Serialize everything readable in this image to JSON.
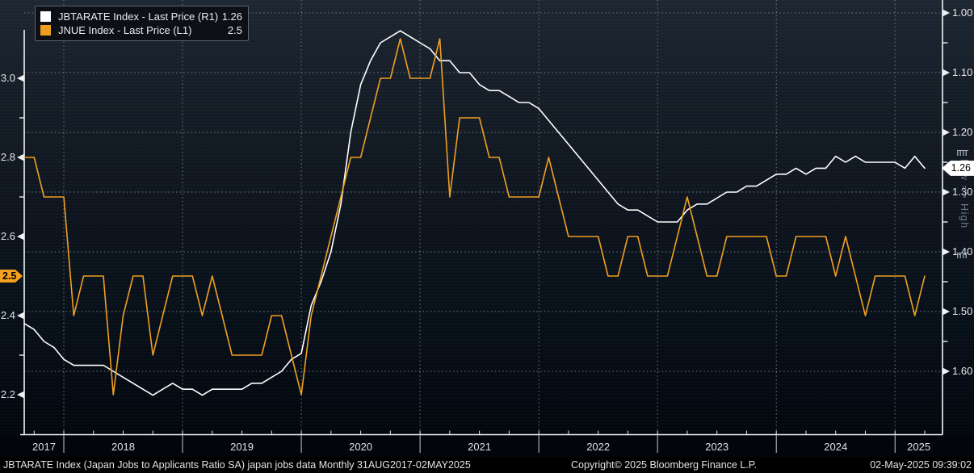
{
  "legend": {
    "items": [
      {
        "label": "JBTARATE Index - Last Price (R1)",
        "value": "1.26",
        "swatch_color": "#ffffff"
      },
      {
        "label": "JNUE Index - Last Price (L1)",
        "value": "2.5",
        "swatch_color": "#f09e1f"
      }
    ]
  },
  "right_rail": {
    "label": "Low => High"
  },
  "footer": {
    "left": "JBTARATE Index (Japan Jobs to Applicants Ratio SA) japan jobs data  Monthly 31AUG2017-02MAY2025",
    "center": "Copyright© 2025 Bloomberg Finance L.P.",
    "right": "02-May-2025 09:39:02"
  },
  "chart_data": {
    "type": "line",
    "title": "JBTARATE Index (Japan Jobs to Applicants Ratio SA) japan jobs data",
    "period": "Monthly 31AUG2017-02MAY2025",
    "grid": true,
    "legend_position": "top-left",
    "x_year_labels": [
      "2017",
      "2018",
      "2019",
      "2020",
      "2021",
      "2022",
      "2023",
      "2024",
      "2025"
    ],
    "x": [
      "2017-08",
      "2017-09",
      "2017-10",
      "2017-11",
      "2017-12",
      "2018-01",
      "2018-02",
      "2018-03",
      "2018-04",
      "2018-05",
      "2018-06",
      "2018-07",
      "2018-08",
      "2018-09",
      "2018-10",
      "2018-11",
      "2018-12",
      "2019-01",
      "2019-02",
      "2019-03",
      "2019-04",
      "2019-05",
      "2019-06",
      "2019-07",
      "2019-08",
      "2019-09",
      "2019-10",
      "2019-11",
      "2019-12",
      "2020-01",
      "2020-02",
      "2020-03",
      "2020-04",
      "2020-05",
      "2020-06",
      "2020-07",
      "2020-08",
      "2020-09",
      "2020-10",
      "2020-11",
      "2020-12",
      "2021-01",
      "2021-02",
      "2021-03",
      "2021-04",
      "2021-05",
      "2021-06",
      "2021-07",
      "2021-08",
      "2021-09",
      "2021-10",
      "2021-11",
      "2021-12",
      "2022-01",
      "2022-02",
      "2022-03",
      "2022-04",
      "2022-05",
      "2022-06",
      "2022-07",
      "2022-08",
      "2022-09",
      "2022-10",
      "2022-11",
      "2022-12",
      "2023-01",
      "2023-02",
      "2023-03",
      "2023-04",
      "2023-05",
      "2023-06",
      "2023-07",
      "2023-08",
      "2023-09",
      "2023-10",
      "2023-11",
      "2023-12",
      "2024-01",
      "2024-02",
      "2024-03",
      "2024-04",
      "2024-05",
      "2024-06",
      "2024-07",
      "2024-08",
      "2024-09",
      "2024-10",
      "2024-11",
      "2024-12",
      "2025-01",
      "2025-02",
      "2025-03"
    ],
    "series": [
      {
        "name": "JBTARATE Index - Last Price (R1)",
        "axis": "right",
        "color": "#ffffff",
        "last_value": 1.26,
        "values": [
          1.52,
          1.53,
          1.55,
          1.56,
          1.58,
          1.59,
          1.59,
          1.59,
          1.59,
          1.6,
          1.61,
          1.62,
          1.63,
          1.64,
          1.63,
          1.62,
          1.63,
          1.63,
          1.64,
          1.63,
          1.63,
          1.63,
          1.63,
          1.62,
          1.62,
          1.61,
          1.6,
          1.58,
          1.57,
          1.49,
          1.45,
          1.4,
          1.32,
          1.2,
          1.12,
          1.08,
          1.05,
          1.04,
          1.03,
          1.04,
          1.05,
          1.06,
          1.08,
          1.08,
          1.1,
          1.1,
          1.12,
          1.13,
          1.13,
          1.14,
          1.15,
          1.15,
          1.16,
          1.18,
          1.2,
          1.22,
          1.24,
          1.26,
          1.28,
          1.3,
          1.32,
          1.33,
          1.33,
          1.34,
          1.35,
          1.35,
          1.35,
          1.33,
          1.32,
          1.32,
          1.31,
          1.3,
          1.3,
          1.29,
          1.29,
          1.28,
          1.27,
          1.27,
          1.26,
          1.27,
          1.26,
          1.26,
          1.24,
          1.25,
          1.24,
          1.25,
          1.25,
          1.25,
          1.25,
          1.26,
          1.24,
          1.26
        ]
      },
      {
        "name": "JNUE Index - Last Price (L1)",
        "axis": "left",
        "color": "#f09e1f",
        "last_value": 2.5,
        "values": [
          2.8,
          2.8,
          2.7,
          2.7,
          2.7,
          2.4,
          2.5,
          2.5,
          2.5,
          2.2,
          2.4,
          2.5,
          2.5,
          2.3,
          2.4,
          2.5,
          2.5,
          2.5,
          2.4,
          2.5,
          2.4,
          2.3,
          2.3,
          2.3,
          2.3,
          2.4,
          2.4,
          2.3,
          2.2,
          2.4,
          2.5,
          2.6,
          2.7,
          2.8,
          2.8,
          2.9,
          3.0,
          3.0,
          3.1,
          3.0,
          3.0,
          3.0,
          3.1,
          2.7,
          2.9,
          2.9,
          2.9,
          2.8,
          2.8,
          2.7,
          2.7,
          2.7,
          2.7,
          2.8,
          2.7,
          2.6,
          2.6,
          2.6,
          2.6,
          2.5,
          2.5,
          2.6,
          2.6,
          2.5,
          2.5,
          2.5,
          2.6,
          2.7,
          2.6,
          2.5,
          2.5,
          2.6,
          2.6,
          2.6,
          2.6,
          2.6,
          2.5,
          2.5,
          2.6,
          2.6,
          2.6,
          2.6,
          2.5,
          2.6,
          2.5,
          2.4,
          2.5,
          2.5,
          2.5,
          2.5,
          2.4,
          2.5
        ]
      }
    ],
    "left_axis": {
      "ticks": [
        "3.0",
        "2.8",
        "2.6",
        "2.4",
        "2.2"
      ],
      "minor_ticks": [
        2.9,
        2.7,
        2.3
      ],
      "badge_label": "2.5",
      "badge_value": 2.5,
      "min": 2.2,
      "max": 3.16
    },
    "right_axis": {
      "ticks": [
        "1.00",
        "1.10",
        "1.20",
        "1.30",
        "1.40",
        "1.50",
        "1.60"
      ],
      "minor_ticks": [
        1.05,
        1.15,
        1.25,
        1.35,
        1.45,
        1.55
      ],
      "badge_label": "1.26",
      "badge_value": 1.26,
      "inverted": true,
      "min": 1.0,
      "max": 1.63
    }
  }
}
